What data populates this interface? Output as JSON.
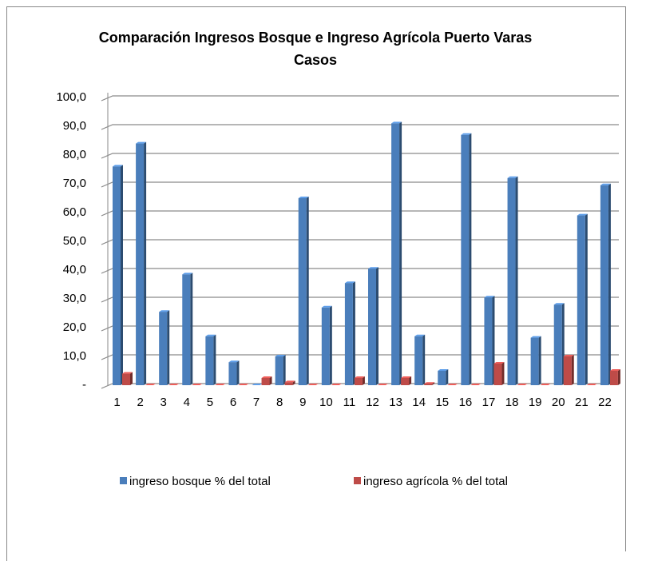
{
  "chart_data": {
    "type": "bar",
    "title": "Comparación Ingresos Bosque e Ingreso Agrícola Puerto Varas Casos",
    "categories": [
      "1",
      "2",
      "3",
      "4",
      "5",
      "6",
      "7",
      "8",
      "9",
      "10",
      "11",
      "12",
      "13",
      "14",
      "15",
      "16",
      "17",
      "18",
      "19",
      "20",
      "21",
      "22"
    ],
    "series": [
      {
        "name": "ingreso bosque % del total",
        "color": "#4a7ebb",
        "values": [
          76,
          84,
          25.5,
          38.5,
          17,
          8,
          0,
          10,
          65,
          27,
          35.5,
          40.5,
          91,
          17,
          5,
          87,
          30.5,
          72,
          16.5,
          28,
          59,
          69.5
        ]
      },
      {
        "name": "ingreso agrícola % del total",
        "color": "#be4b48",
        "values": [
          4,
          0,
          0,
          0,
          0,
          0,
          2.5,
          1,
          0,
          0,
          2.5,
          0,
          2.5,
          0.5,
          0,
          0,
          7.5,
          0,
          0,
          10,
          0,
          5
        ]
      }
    ],
    "ylim": [
      0,
      100
    ],
    "yticks": [
      {
        "value": 0,
        "label": "-"
      },
      {
        "value": 10,
        "label": "10,0"
      },
      {
        "value": 20,
        "label": "20,0"
      },
      {
        "value": 30,
        "label": "30,0"
      },
      {
        "value": 40,
        "label": "40,0"
      },
      {
        "value": 50,
        "label": "50,0"
      },
      {
        "value": 60,
        "label": "60,0"
      },
      {
        "value": 70,
        "label": "70,0"
      },
      {
        "value": 80,
        "label": "80,0"
      },
      {
        "value": 90,
        "label": "90,0"
      },
      {
        "value": 100,
        "label": "100,0"
      }
    ],
    "grid": true,
    "legend": "bottom"
  }
}
